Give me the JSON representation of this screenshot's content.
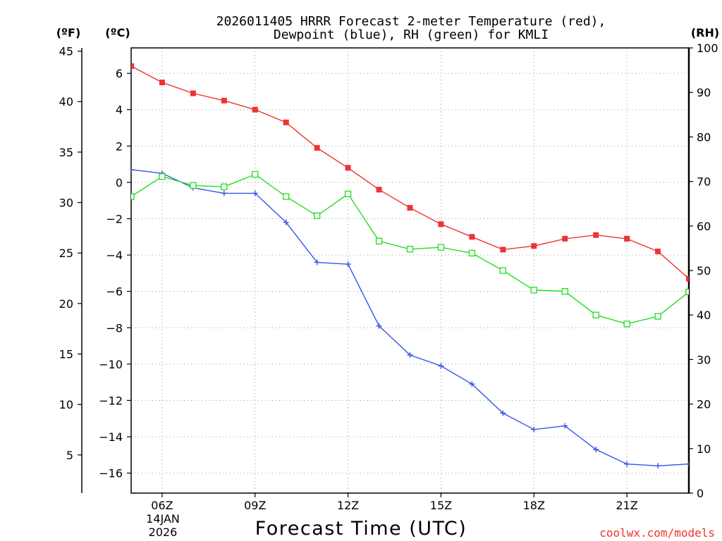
{
  "chart_data": {
    "type": "line",
    "title_line1": "2026011405 HRRR Forecast 2-meter Temperature (red),",
    "title_line2": "Dewpoint (blue), RH (green) for KMLI",
    "xlabel": "Forecast Time (UTC)",
    "credit": "coolwx.com/models",
    "unit_f": "(ºF)",
    "unit_c": "(ºC)",
    "unit_rh": "(RH)",
    "date_line1": "14JAN",
    "date_line2": "2026",
    "hours": [
      5,
      6,
      7,
      8,
      9,
      10,
      11,
      12,
      13,
      14,
      15,
      16,
      17,
      18,
      19,
      20,
      21,
      22,
      23
    ],
    "x_ticks": [
      {
        "hour": 6,
        "label": "06Z"
      },
      {
        "hour": 9,
        "label": "09Z"
      },
      {
        "hour": 12,
        "label": "12Z"
      },
      {
        "hour": 15,
        "label": "15Z"
      },
      {
        "hour": 18,
        "label": "18Z"
      },
      {
        "hour": 21,
        "label": "21Z"
      }
    ],
    "x_range": [
      5,
      23
    ],
    "celsius_range": [
      -17.1,
      7.4
    ],
    "celsius_ticks": [
      {
        "v": 6,
        "label": "6"
      },
      {
        "v": 4,
        "label": "4"
      },
      {
        "v": 2,
        "label": "2"
      },
      {
        "v": 0,
        "label": "0"
      },
      {
        "v": -2,
        "label": "−2"
      },
      {
        "v": -4,
        "label": "−4"
      },
      {
        "v": -6,
        "label": "−6"
      },
      {
        "v": -8,
        "label": "−8"
      },
      {
        "v": -10,
        "label": "−10"
      },
      {
        "v": -12,
        "label": "−12"
      },
      {
        "v": -14,
        "label": "−14"
      },
      {
        "v": -16,
        "label": "−16"
      }
    ],
    "fahrenheit_ticks": [
      {
        "v": 45,
        "label": "45"
      },
      {
        "v": 40,
        "label": "40"
      },
      {
        "v": 35,
        "label": "35"
      },
      {
        "v": 30,
        "label": "30"
      },
      {
        "v": 25,
        "label": "25"
      },
      {
        "v": 20,
        "label": "20"
      },
      {
        "v": 15,
        "label": "15"
      },
      {
        "v": 10,
        "label": "10"
      },
      {
        "v": 5,
        "label": "5"
      }
    ],
    "rh_range": [
      0,
      100
    ],
    "rh_ticks": [
      {
        "v": 100,
        "label": "100"
      },
      {
        "v": 90,
        "label": "90"
      },
      {
        "v": 80,
        "label": "80"
      },
      {
        "v": 70,
        "label": "70"
      },
      {
        "v": 60,
        "label": "60"
      },
      {
        "v": 50,
        "label": "50"
      },
      {
        "v": 40,
        "label": "40"
      },
      {
        "v": 30,
        "label": "30"
      },
      {
        "v": 20,
        "label": "20"
      },
      {
        "v": 10,
        "label": "10"
      },
      {
        "v": 0,
        "label": "0"
      }
    ],
    "series": [
      {
        "name": "Temperature",
        "axis": "celsius",
        "color": "#ee3333",
        "marker": "filled-square",
        "values": [
          6.4,
          5.5,
          4.9,
          4.5,
          4.0,
          3.3,
          1.9,
          0.8,
          -0.4,
          -1.4,
          -2.3,
          -3.0,
          -3.7,
          -3.5,
          -3.1,
          -2.9,
          -3.1,
          -3.8,
          -5.3
        ]
      },
      {
        "name": "Dewpoint",
        "axis": "celsius",
        "color": "#3355ee",
        "marker": "plus",
        "values": [
          0.7,
          0.5,
          -0.3,
          -0.6,
          -0.6,
          -2.2,
          -4.4,
          -4.5,
          -7.9,
          -9.5,
          -10.1,
          -11.1,
          -12.7,
          -13.6,
          -13.4,
          -14.7,
          -15.5,
          -15.6,
          -15.5
        ]
      },
      {
        "name": "RH",
        "axis": "rh",
        "color": "#22dd22",
        "marker": "open-square",
        "values": [
          66.6,
          71.1,
          69.1,
          68.8,
          71.6,
          66.6,
          62.3,
          67.2,
          56.6,
          54.8,
          55.2,
          53.9,
          50.0,
          45.6,
          45.3,
          40.0,
          38.0,
          39.7,
          45.2
        ]
      }
    ]
  }
}
